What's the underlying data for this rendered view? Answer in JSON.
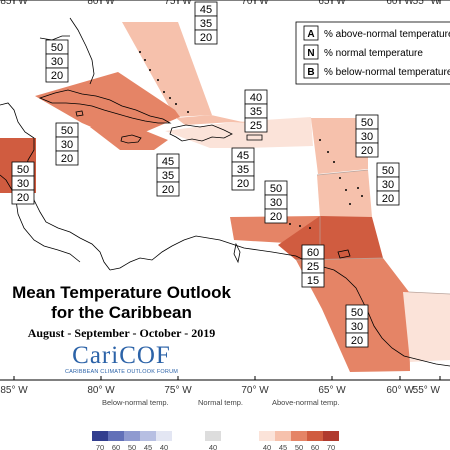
{
  "map": {
    "title_line1": "Mean Temperature Outlook",
    "title_line2": "for the Caribbean",
    "period": "August - September - October - 2019",
    "logo_name": "CariCOF",
    "logo_subtitle": "CARIBBEAN CLIMATE OUTLOOK FORUM",
    "longitude_labels": [
      "85° W",
      "80° W",
      "75° W",
      "70° W",
      "65° W",
      "60° W",
      "55° W"
    ],
    "legend_box": {
      "rows": [
        {
          "letter": "A",
          "text": "% above-normal temperature"
        },
        {
          "letter": "N",
          "text": "% normal temperature"
        },
        {
          "letter": "B",
          "text": "% below-normal temperature"
        }
      ]
    },
    "regions": [
      {
        "name": "bahamas",
        "above": 45,
        "normal": 35,
        "below": 20
      },
      {
        "name": "cuba",
        "above": 50,
        "normal": 30,
        "below": 20
      },
      {
        "name": "belize",
        "above": 50,
        "normal": 30,
        "below": 20
      },
      {
        "name": "central-america",
        "above": 50,
        "normal": 30,
        "below": 20
      },
      {
        "name": "jamaica",
        "above": 45,
        "normal": 35,
        "below": 20
      },
      {
        "name": "hispaniola",
        "above": 45,
        "normal": 35,
        "below": 20
      },
      {
        "name": "turks-caicos",
        "above": 40,
        "normal": 35,
        "below": 25
      },
      {
        "name": "leeward-islands",
        "above": 50,
        "normal": 30,
        "below": 20
      },
      {
        "name": "windward-islands",
        "above": 50,
        "normal": 30,
        "below": 20
      },
      {
        "name": "abc-islands",
        "above": 50,
        "normal": 30,
        "below": 20
      },
      {
        "name": "trinidad",
        "above": 60,
        "normal": 25,
        "below": 15
      },
      {
        "name": "guianas",
        "above": 50,
        "normal": 30,
        "below": 20
      }
    ],
    "colors": {
      "above_40": "#fbe3d9",
      "above_45": "#f6c1ac",
      "above_50": "#e58466",
      "above_60": "#d05c40",
      "above_70": "#b03a2e",
      "normal": "#dddddd",
      "below_40": "#e3e6f3",
      "below_45": "#b7bfe2",
      "below_50": "#8f9ad0",
      "below_60": "#6270b8",
      "below_70": "#323e8f",
      "coast": "#000000"
    },
    "scale": {
      "below_label": "Below-normal temp.",
      "normal_label": "Normal temp.",
      "above_label": "Above-normal temp.",
      "below_ticks": [
        "70",
        "60",
        "50",
        "45",
        "40"
      ],
      "normal_ticks": [
        "40"
      ],
      "above_ticks": [
        "40",
        "45",
        "50",
        "60",
        "70"
      ]
    }
  }
}
